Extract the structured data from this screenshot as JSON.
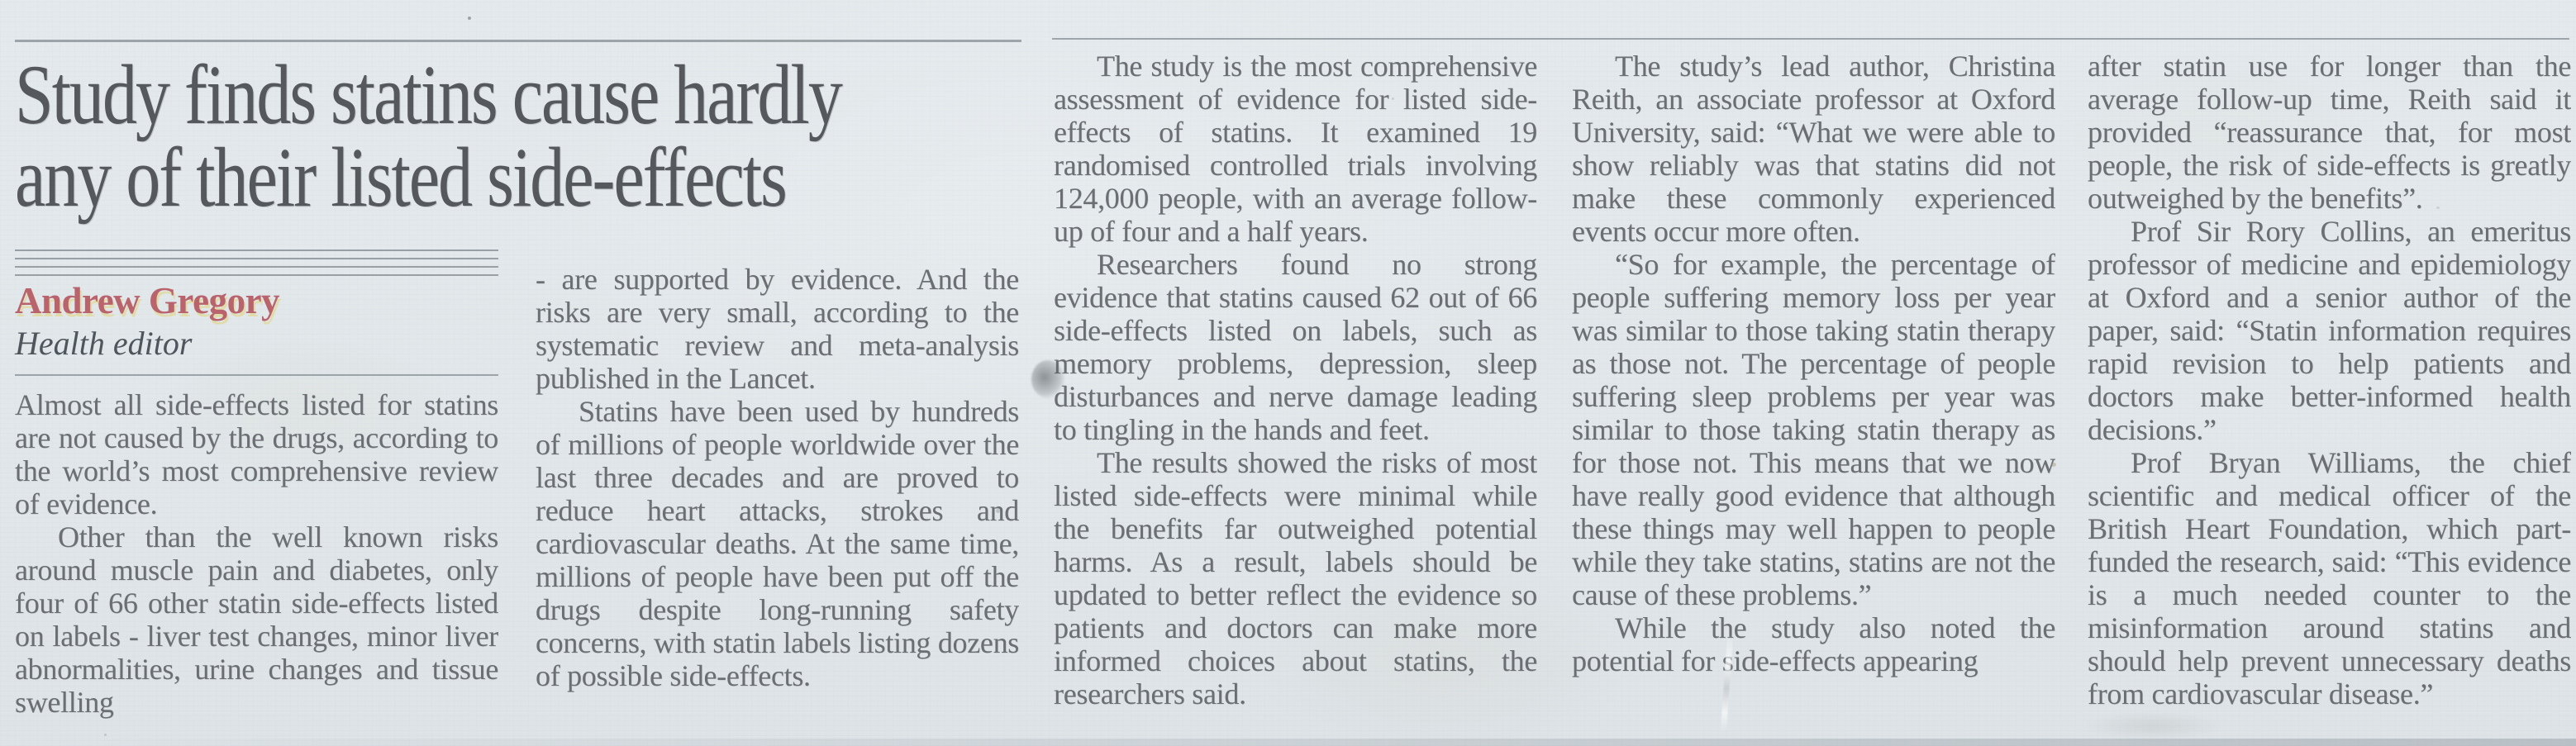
{
  "colors": {
    "paper": "#e1e7ea",
    "ink_body": "#6b6f74",
    "ink_headline": "#55595e",
    "byline_red": "#b9636d",
    "byline_role": "#4f555d",
    "rule": "#868d94"
  },
  "article": {
    "headline": "Study finds statins cause hardly any of their listed side-effects",
    "headline_lines": [
      "Study finds statins cause hardly",
      "any of their listed side-effects"
    ],
    "byline": {
      "author": "Andrew Gregory",
      "role": "Health editor"
    },
    "columns": [
      {
        "paragraphs": [
          {
            "indent": false,
            "text": "Almost all side-effects listed for statins are not caused by the drugs, according to the world’s most comprehensive review of evidence."
          },
          {
            "indent": true,
            "text": "Other than the well known risks around muscle pain and diabetes, only four of 66 other statin side-effects listed on labels - liver test changes, minor liver abnormalities, urine changes and tissue swelling"
          }
        ]
      },
      {
        "paragraphs": [
          {
            "indent": false,
            "text": "- are supported by evidence. And the risks are very small, according to the systematic review and meta-analysis published in the Lancet."
          },
          {
            "indent": true,
            "text": "Statins have been used by hundreds of millions of people worldwide over the last three decades and are proved to reduce heart attacks, strokes and cardiovascular deaths. At the same time, millions of people have been put off the drugs despite long-running safety concerns, with statin labels listing dozens of possible side-effects."
          }
        ]
      },
      {
        "paragraphs": [
          {
            "indent": true,
            "text": "The study is the most comprehensive assessment of evidence for listed side-effects of statins. It examined 19 randomised controlled trials involving 124,000 people, with an average follow-up of four and a half years."
          },
          {
            "indent": true,
            "text": "Researchers found no strong evidence that statins caused 62 out of 66 side-effects listed on labels, such as memory problems, depression, sleep disturbances and nerve damage leading to tingling in the hands and feet."
          },
          {
            "indent": true,
            "text": "The results showed the risks of most listed side-effects were minimal while the benefits far outweighed potential harms. As a result, labels should be updated to better reflect the evidence so patients and doctors can make more informed choices about statins, the researchers said."
          }
        ]
      },
      {
        "paragraphs": [
          {
            "indent": true,
            "text": "The study’s lead author, Christina Reith, an associate professor at Oxford University, said: “What we were able to show reliably was that statins did not make these commonly experienced events occur more often."
          },
          {
            "indent": true,
            "text": "“So for example, the percentage of people suffering memory loss per year was similar to those taking statin therapy as those not. The percentage of people suffering sleep problems per year was similar to those taking statin therapy as for those not. This means that we now have really good evidence that although these things may well happen to people while they take statins, statins are not the cause of these problems.”"
          },
          {
            "indent": true,
            "text": "While the study also noted the potential for side-effects appearing"
          }
        ]
      },
      {
        "paragraphs": [
          {
            "indent": false,
            "text": "after statin use for longer than the average follow-up time, Reith said it provided “reassurance that, for most people, the risk of side-effects is greatly outweighed by the benefits”."
          },
          {
            "indent": true,
            "text": "Prof Sir Rory Collins, an emeritus professor of medicine and epidemiology at Oxford and a senior author of the paper, said: “Statin information requires rapid revision to help patients and doctors make better-informed health decisions.”"
          },
          {
            "indent": true,
            "text": "Prof Bryan Williams, the chief scientific and medical officer of the British Heart Foundation, which part-funded the research, said: “This evidence is a much needed counter to the misinformation around statins and should help prevent unnecessary deaths from cardiovascular disease.”"
          }
        ]
      }
    ]
  }
}
